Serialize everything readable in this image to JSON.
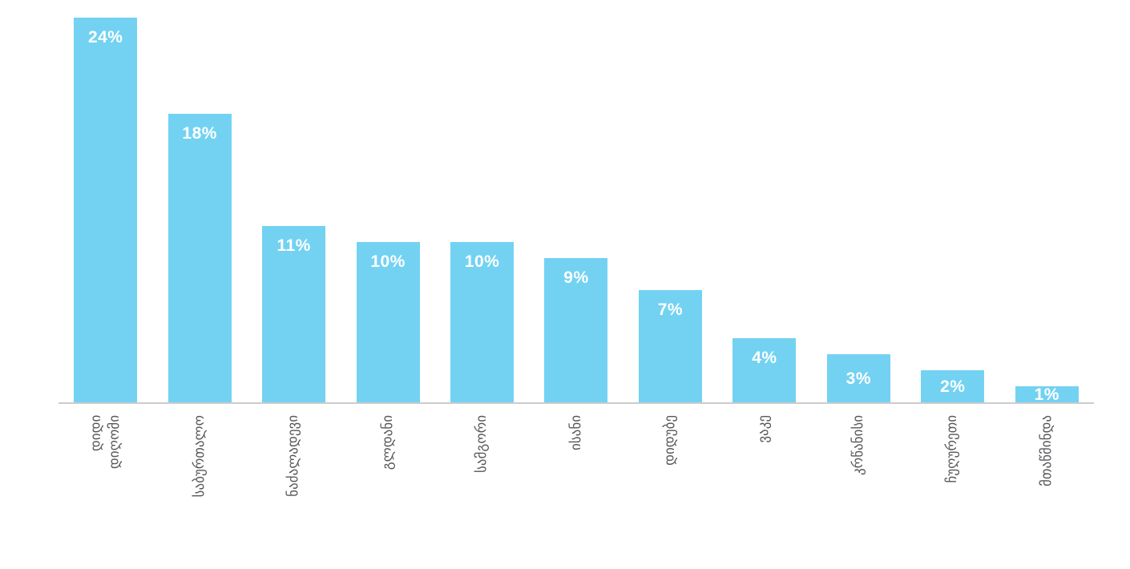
{
  "chart_data": {
    "type": "bar",
    "title": "",
    "xlabel": "",
    "ylabel": "",
    "ylim": [
      0,
      24
    ],
    "grid": false,
    "legend_position": "none",
    "value_unit": "%",
    "categories": [
      "დიდი\nდიღომი",
      "საბურთალო",
      "ნაძალადევი",
      "გლდანი",
      "სამგორი",
      "ისანი",
      "დიდუბე",
      "ვაკე",
      "კრწანისი",
      "ჩუღურეთი",
      "მთაწმინდა"
    ],
    "values": [
      24,
      18,
      11,
      10,
      10,
      9,
      7,
      4,
      3,
      2,
      1
    ],
    "bar_labels": [
      "24%",
      "18%",
      "11%",
      "10%",
      "10%",
      "9%",
      "7%",
      "4%",
      "3%",
      "2%",
      "1%"
    ],
    "colors": {
      "bar": "#73d2f2",
      "bar_label": "#ffffff",
      "tick_label": "#55565a",
      "axis_line": "#cccccc",
      "background": "#ffffff"
    }
  }
}
